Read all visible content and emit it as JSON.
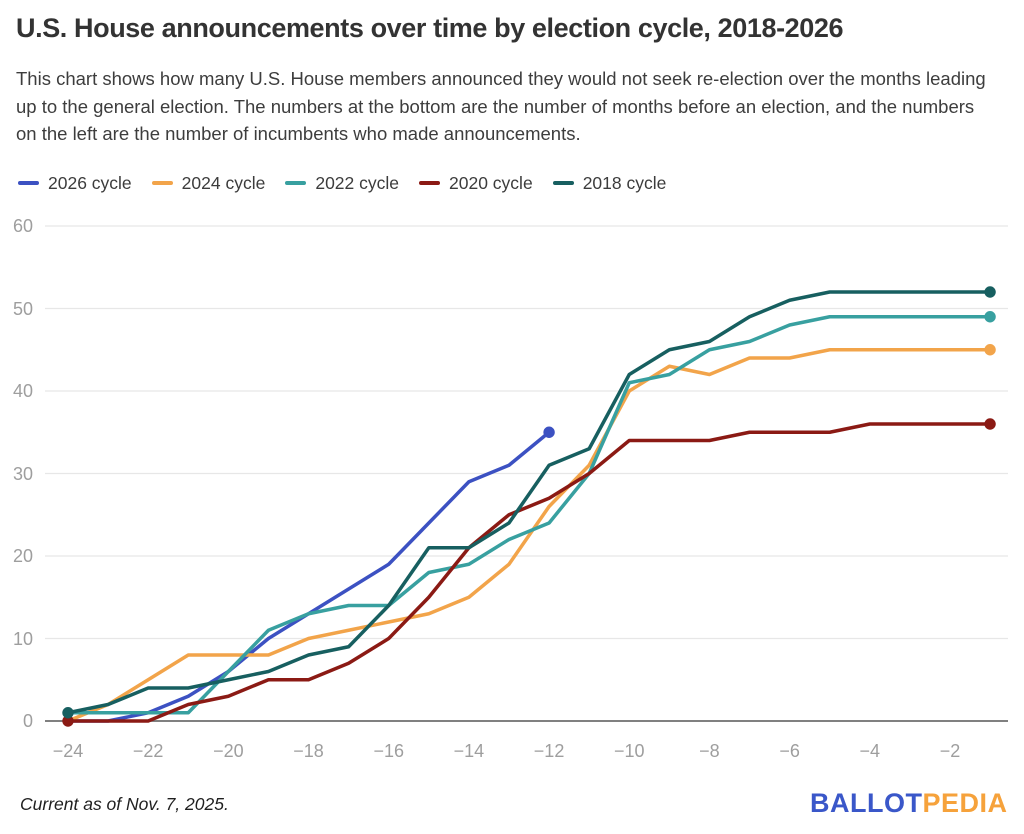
{
  "title": "U.S. House announcements over time by election cycle, 2018-2026",
  "subtitle": "This chart shows how many U.S. House members announced they would not seek re-election over the months leading up to the general election. The numbers at the bottom are the number of months before an election, and the numbers on the left are the number of incumbents who made announcements.",
  "footer": {
    "note": "Current as of Nov. 7, 2025.",
    "logo": {
      "primary": "BALLOT",
      "secondary": "PEDIA"
    }
  },
  "colors": {
    "title": "#333333",
    "subtitle": "#3d3d3d",
    "legend_label": "#3c3c3c",
    "gridline": "#e7e7e7",
    "baseline": "#6e6e6e",
    "tick_label": "#9e9e9e",
    "logo_blue": "#3a57c9",
    "logo_orange": "#f6a23b"
  },
  "chart_data": {
    "type": "line",
    "title": "U.S. House announcements over time by election cycle, 2018-2026",
    "xlabel": "",
    "ylabel": "",
    "xlim": [
      -24,
      -1
    ],
    "ylim": [
      0,
      60
    ],
    "grid": "horizontal",
    "legend_position": "top-left",
    "x_ticks": [
      "−24",
      "−22",
      "−20",
      "−18",
      "−16",
      "−14",
      "−12",
      "−10",
      "−8",
      "−6",
      "−4",
      "−2"
    ],
    "x_tick_months": [
      -24,
      -22,
      -20,
      -18,
      -16,
      -14,
      -12,
      -10,
      -8,
      -6,
      -4,
      -2
    ],
    "y_ticks": [
      0,
      10,
      20,
      30,
      40,
      50,
      60
    ],
    "series": [
      {
        "name": "2026 cycle",
        "color": "#3c51c2",
        "start_month": -24,
        "values": [
          0,
          0,
          1,
          3,
          6,
          10,
          13,
          16,
          19,
          24,
          29,
          31,
          35
        ],
        "dot_months": [
          -12
        ]
      },
      {
        "name": "2024 cycle",
        "color": "#f2a44a",
        "start_month": -24,
        "values": [
          0,
          2,
          5,
          8,
          8,
          8,
          10,
          11,
          12,
          13,
          15,
          19,
          26,
          31,
          40,
          43,
          42,
          44,
          44,
          45,
          45,
          45,
          45,
          45
        ],
        "dot_months": [
          -1
        ]
      },
      {
        "name": "2022 cycle",
        "color": "#38a0a0",
        "start_month": -24,
        "values": [
          1,
          1,
          1,
          1,
          6,
          11,
          13,
          14,
          14,
          18,
          19,
          22,
          24,
          30,
          41,
          42,
          45,
          46,
          48,
          49,
          49,
          49,
          49,
          49
        ],
        "dot_months": [
          -1
        ]
      },
      {
        "name": "2020 cycle",
        "color": "#8b1a14",
        "start_month": -24,
        "values": [
          0,
          0,
          0,
          2,
          3,
          5,
          5,
          7,
          10,
          15,
          21,
          25,
          27,
          30,
          34,
          34,
          34,
          35,
          35,
          35,
          36,
          36,
          36,
          36
        ],
        "dot_months": [
          -24,
          -1
        ]
      },
      {
        "name": "2018 cycle",
        "color": "#175f60",
        "start_month": -24,
        "values": [
          1,
          2,
          4,
          4,
          5,
          6,
          8,
          9,
          14,
          21,
          21,
          24,
          31,
          33,
          42,
          45,
          46,
          49,
          51,
          52,
          52,
          52,
          52,
          52
        ],
        "dot_months": [
          -24,
          -1
        ]
      }
    ]
  }
}
